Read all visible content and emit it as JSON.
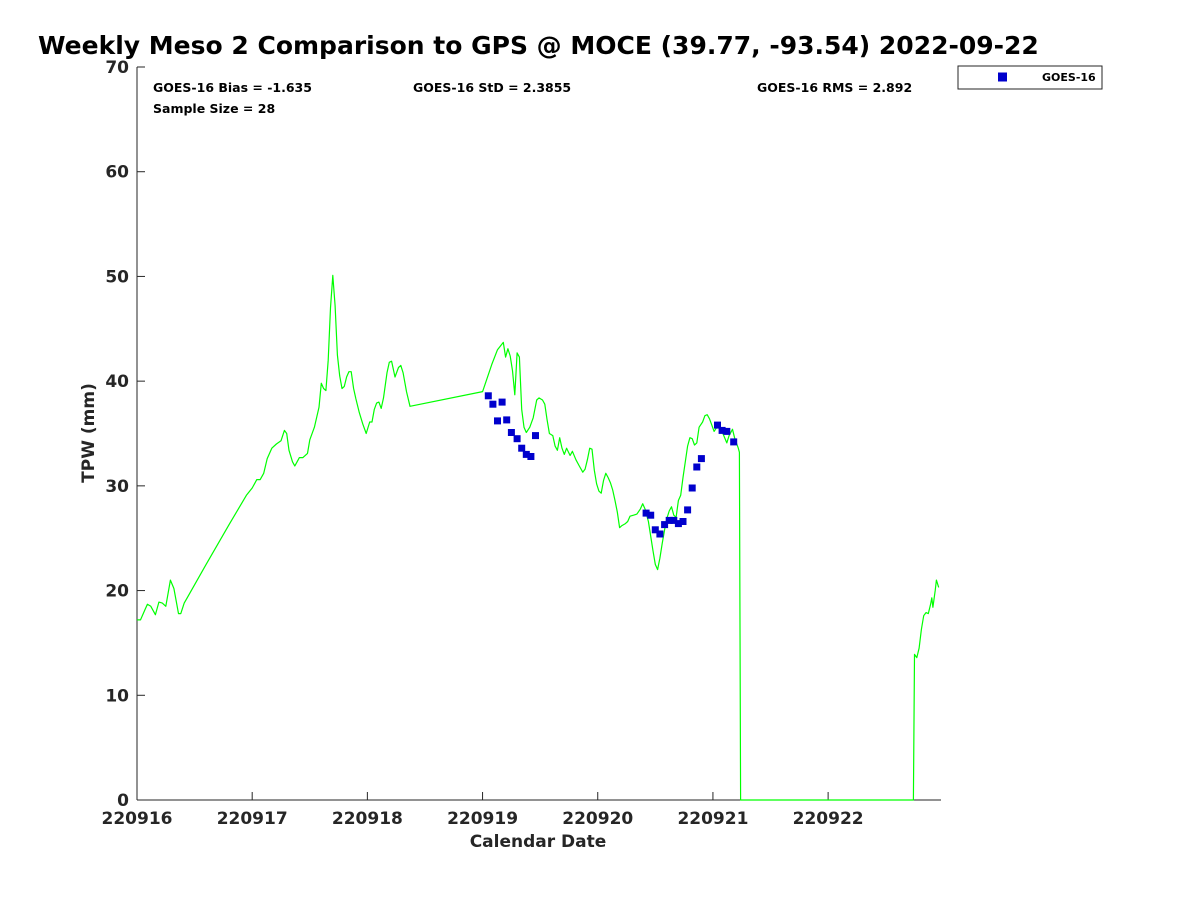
{
  "colors": {
    "gps_line": "#00ff00",
    "goes_marker": "#0000cc",
    "axes": "#262626"
  },
  "chart_data": {
    "type": "scatter",
    "title": "Weekly Meso 2 Comparison to GPS @ MOCE (39.77, -93.54) 2022-09-22",
    "xlabel": "Calendar Date",
    "ylabel": "TPW (mm)",
    "xlim": [
      0,
      6.98
    ],
    "ylim": [
      0,
      70
    ],
    "yticks": [
      0,
      10,
      20,
      30,
      40,
      50,
      60,
      70
    ],
    "xticks": [
      {
        "value": 0,
        "label": "220916"
      },
      {
        "value": 1,
        "label": "220917"
      },
      {
        "value": 2,
        "label": "220918"
      },
      {
        "value": 3,
        "label": "220919"
      },
      {
        "value": 4,
        "label": "220920"
      },
      {
        "value": 5,
        "label": "220921"
      },
      {
        "value": 6,
        "label": "220922"
      }
    ],
    "x_units": "days since 220916",
    "stats": {
      "bias": "GOES-16 Bias = -1.635",
      "std": "GOES-16 StD = 2.3855",
      "rms": "GOES-16 RMS = 2.892",
      "sample": "Sample Size = 28"
    },
    "legend": {
      "position": "top-right-outside",
      "entries": [
        "GOES-16"
      ]
    },
    "series": [
      {
        "name": "GPS",
        "style": "line",
        "points": [
          [
            0.0,
            17.2
          ],
          [
            0.03,
            17.2
          ],
          [
            0.07,
            18.2
          ],
          [
            0.09,
            18.7
          ],
          [
            0.12,
            18.5
          ],
          [
            0.16,
            17.7
          ],
          [
            0.19,
            18.9
          ],
          [
            0.22,
            18.8
          ],
          [
            0.25,
            18.5
          ],
          [
            0.29,
            21.0
          ],
          [
            0.32,
            20.2
          ],
          [
            0.34,
            19.0
          ],
          [
            0.36,
            17.8
          ],
          [
            0.38,
            17.8
          ],
          [
            0.41,
            18.8
          ],
          [
            0.44,
            19.4
          ],
          [
            0.6,
            22.5
          ],
          [
            0.8,
            26.3
          ],
          [
            0.95,
            29.1
          ],
          [
            1.0,
            29.8
          ],
          [
            1.04,
            30.6
          ],
          [
            1.07,
            30.6
          ],
          [
            1.1,
            31.2
          ],
          [
            1.13,
            32.6
          ],
          [
            1.17,
            33.6
          ],
          [
            1.21,
            34.0
          ],
          [
            1.25,
            34.3
          ],
          [
            1.28,
            35.3
          ],
          [
            1.3,
            35.0
          ],
          [
            1.32,
            33.4
          ],
          [
            1.35,
            32.3
          ],
          [
            1.37,
            31.9
          ],
          [
            1.39,
            32.3
          ],
          [
            1.41,
            32.7
          ],
          [
            1.44,
            32.7
          ],
          [
            1.48,
            33.1
          ],
          [
            1.5,
            34.4
          ],
          [
            1.54,
            35.6
          ],
          [
            1.58,
            37.5
          ],
          [
            1.6,
            39.8
          ],
          [
            1.62,
            39.3
          ],
          [
            1.64,
            39.1
          ],
          [
            1.66,
            42.0
          ],
          [
            1.68,
            47.0
          ],
          [
            1.7,
            50.1
          ],
          [
            1.72,
            47.2
          ],
          [
            1.74,
            42.5
          ],
          [
            1.76,
            40.5
          ],
          [
            1.78,
            39.3
          ],
          [
            1.8,
            39.5
          ],
          [
            1.82,
            40.4
          ],
          [
            1.84,
            40.9
          ],
          [
            1.86,
            40.9
          ],
          [
            1.88,
            39.3
          ],
          [
            1.9,
            38.3
          ],
          [
            1.93,
            37.0
          ],
          [
            1.96,
            35.9
          ],
          [
            1.99,
            35.0
          ],
          [
            2.02,
            36.1
          ],
          [
            2.04,
            36.1
          ],
          [
            2.06,
            37.3
          ],
          [
            2.08,
            37.9
          ],
          [
            2.1,
            38.0
          ],
          [
            2.12,
            37.4
          ],
          [
            2.14,
            38.4
          ],
          [
            2.17,
            40.8
          ],
          [
            2.19,
            41.8
          ],
          [
            2.21,
            41.9
          ],
          [
            2.24,
            40.4
          ],
          [
            2.27,
            41.3
          ],
          [
            2.29,
            41.5
          ],
          [
            2.31,
            40.8
          ],
          [
            2.34,
            39.0
          ],
          [
            2.37,
            37.6
          ],
          [
            3.0,
            39.0
          ],
          [
            3.08,
            41.6
          ],
          [
            3.13,
            43.0
          ],
          [
            3.18,
            43.7
          ],
          [
            3.2,
            42.3
          ],
          [
            3.22,
            43.1
          ],
          [
            3.24,
            42.4
          ],
          [
            3.26,
            41.0
          ],
          [
            3.28,
            38.7
          ],
          [
            3.3,
            42.7
          ],
          [
            3.32,
            42.3
          ],
          [
            3.34,
            37.3
          ],
          [
            3.36,
            35.6
          ],
          [
            3.38,
            35.1
          ],
          [
            3.41,
            35.6
          ],
          [
            3.44,
            36.5
          ],
          [
            3.47,
            38.2
          ],
          [
            3.49,
            38.4
          ],
          [
            3.52,
            38.2
          ],
          [
            3.54,
            37.8
          ],
          [
            3.56,
            36.3
          ],
          [
            3.58,
            35.0
          ],
          [
            3.61,
            34.8
          ],
          [
            3.63,
            33.8
          ],
          [
            3.65,
            33.4
          ],
          [
            3.67,
            34.6
          ],
          [
            3.69,
            33.6
          ],
          [
            3.71,
            33.0
          ],
          [
            3.73,
            33.6
          ],
          [
            3.76,
            32.9
          ],
          [
            3.78,
            33.3
          ],
          [
            3.81,
            32.5
          ],
          [
            3.84,
            31.9
          ],
          [
            3.87,
            31.3
          ],
          [
            3.89,
            31.6
          ],
          [
            3.91,
            32.5
          ],
          [
            3.93,
            33.6
          ],
          [
            3.95,
            33.5
          ],
          [
            3.97,
            31.5
          ],
          [
            3.99,
            30.2
          ],
          [
            4.01,
            29.5
          ],
          [
            4.03,
            29.3
          ],
          [
            4.05,
            30.5
          ],
          [
            4.07,
            31.2
          ],
          [
            4.09,
            30.8
          ],
          [
            4.11,
            30.3
          ],
          [
            4.13,
            29.6
          ],
          [
            4.15,
            28.6
          ],
          [
            4.17,
            27.5
          ],
          [
            4.19,
            26.0
          ],
          [
            4.21,
            26.2
          ],
          [
            4.24,
            26.4
          ],
          [
            4.26,
            26.6
          ],
          [
            4.28,
            27.1
          ],
          [
            4.31,
            27.2
          ],
          [
            4.34,
            27.3
          ],
          [
            4.37,
            27.8
          ],
          [
            4.39,
            28.3
          ],
          [
            4.41,
            27.8
          ],
          [
            4.44,
            26.6
          ],
          [
            4.46,
            25.2
          ],
          [
            4.48,
            23.8
          ],
          [
            4.5,
            22.5
          ],
          [
            4.52,
            22.0
          ],
          [
            4.54,
            23.1
          ],
          [
            4.56,
            24.5
          ],
          [
            4.58,
            25.8
          ],
          [
            4.6,
            26.9
          ],
          [
            4.62,
            27.6
          ],
          [
            4.64,
            28.0
          ],
          [
            4.66,
            27.2
          ],
          [
            4.68,
            27.0
          ],
          [
            4.7,
            28.6
          ],
          [
            4.72,
            29.1
          ],
          [
            4.74,
            30.8
          ],
          [
            4.76,
            32.3
          ],
          [
            4.78,
            33.8
          ],
          [
            4.8,
            34.6
          ],
          [
            4.82,
            34.5
          ],
          [
            4.84,
            33.9
          ],
          [
            4.86,
            34.1
          ],
          [
            4.88,
            35.6
          ],
          [
            4.91,
            36.1
          ],
          [
            4.93,
            36.7
          ],
          [
            4.95,
            36.8
          ],
          [
            4.97,
            36.4
          ],
          [
            4.99,
            35.8
          ],
          [
            5.01,
            35.2
          ],
          [
            5.04,
            35.7
          ],
          [
            5.06,
            35.6
          ],
          [
            5.09,
            34.9
          ],
          [
            5.12,
            34.1
          ],
          [
            5.14,
            34.8
          ],
          [
            5.17,
            35.4
          ],
          [
            5.19,
            34.5
          ],
          [
            5.22,
            33.6
          ],
          [
            5.23,
            33.2
          ],
          [
            5.24,
            0.0
          ],
          [
            6.74,
            0.0
          ],
          [
            6.75,
            13.9
          ],
          [
            6.77,
            13.6
          ],
          [
            6.79,
            14.5
          ],
          [
            6.81,
            16.3
          ],
          [
            6.83,
            17.6
          ],
          [
            6.85,
            17.9
          ],
          [
            6.87,
            17.8
          ],
          [
            6.89,
            18.7
          ],
          [
            6.9,
            19.3
          ],
          [
            6.91,
            18.4
          ],
          [
            6.93,
            20.0
          ],
          [
            6.94,
            21.0
          ],
          [
            6.96,
            20.3
          ]
        ]
      },
      {
        "name": "GOES-16",
        "style": "marker",
        "points": [
          [
            3.05,
            38.6
          ],
          [
            3.09,
            37.8
          ],
          [
            3.13,
            36.2
          ],
          [
            3.17,
            38.0
          ],
          [
            3.21,
            36.3
          ],
          [
            3.25,
            35.1
          ],
          [
            3.3,
            34.5
          ],
          [
            3.34,
            33.6
          ],
          [
            3.38,
            33.0
          ],
          [
            3.42,
            32.8
          ],
          [
            3.46,
            34.8
          ],
          [
            4.42,
            27.4
          ],
          [
            4.46,
            27.2
          ],
          [
            4.5,
            25.8
          ],
          [
            4.54,
            25.4
          ],
          [
            4.58,
            26.3
          ],
          [
            4.62,
            26.7
          ],
          [
            4.66,
            26.7
          ],
          [
            4.7,
            26.4
          ],
          [
            4.74,
            26.6
          ],
          [
            4.78,
            27.7
          ],
          [
            4.82,
            29.8
          ],
          [
            4.86,
            31.8
          ],
          [
            4.9,
            32.6
          ],
          [
            5.04,
            35.8
          ],
          [
            5.08,
            35.3
          ],
          [
            5.12,
            35.2
          ],
          [
            5.18,
            34.2
          ]
        ]
      }
    ]
  }
}
